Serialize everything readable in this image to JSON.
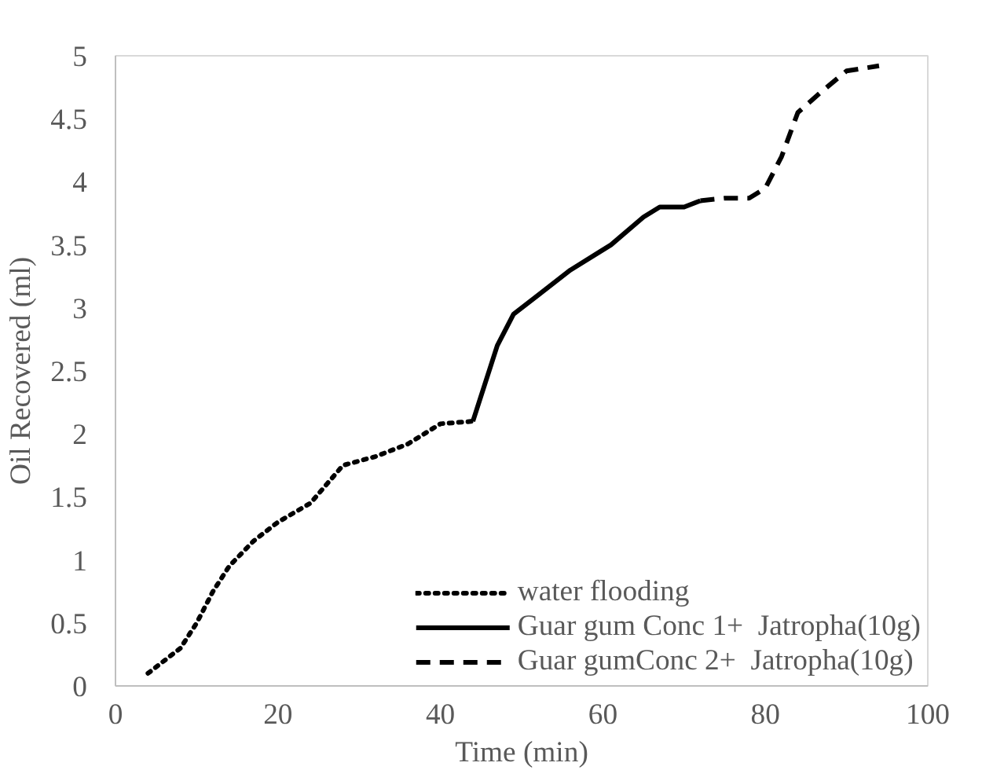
{
  "chart_data": {
    "type": "line",
    "xlabel": "Time (min)",
    "ylabel": "Oil Recovered (ml)",
    "xlim": [
      0,
      100
    ],
    "xticks": [
      0,
      20,
      40,
      60,
      80,
      100
    ],
    "ylim": [
      0,
      5
    ],
    "yticks": [
      0,
      0.5,
      1,
      1.5,
      2,
      2.5,
      3,
      3.5,
      4,
      4.5,
      5
    ],
    "grid": false,
    "legend": "bottom right",
    "marker": "none",
    "series": [
      {
        "name": "water flooding",
        "color": "#000000",
        "line_style": "dotted",
        "x": [
          4,
          8,
          10,
          12,
          14,
          17,
          20,
          24,
          26,
          28,
          32,
          36,
          40,
          44
        ],
        "values": [
          0.1,
          0.3,
          0.5,
          0.75,
          0.95,
          1.15,
          1.3,
          1.45,
          1.6,
          1.75,
          1.82,
          1.92,
          2.08,
          2.1
        ]
      },
      {
        "name": "Guar gum Conc 1+  Jatropha(10g)",
        "color": "#000000",
        "line_style": "solid",
        "x": [
          44,
          47,
          49,
          52,
          56,
          61,
          65,
          67,
          70,
          72
        ],
        "values": [
          2.1,
          2.7,
          2.95,
          3.1,
          3.3,
          3.5,
          3.72,
          3.8,
          3.8,
          3.85
        ]
      },
      {
        "name": "Guar gumConc 2+  Jatropha(10g)",
        "color": "#000000",
        "line_style": "dashed",
        "x": [
          72,
          75,
          78,
          80,
          82,
          84,
          87,
          90,
          94
        ],
        "values": [
          3.85,
          3.87,
          3.87,
          3.95,
          4.2,
          4.55,
          4.72,
          4.88,
          4.92
        ]
      }
    ]
  }
}
